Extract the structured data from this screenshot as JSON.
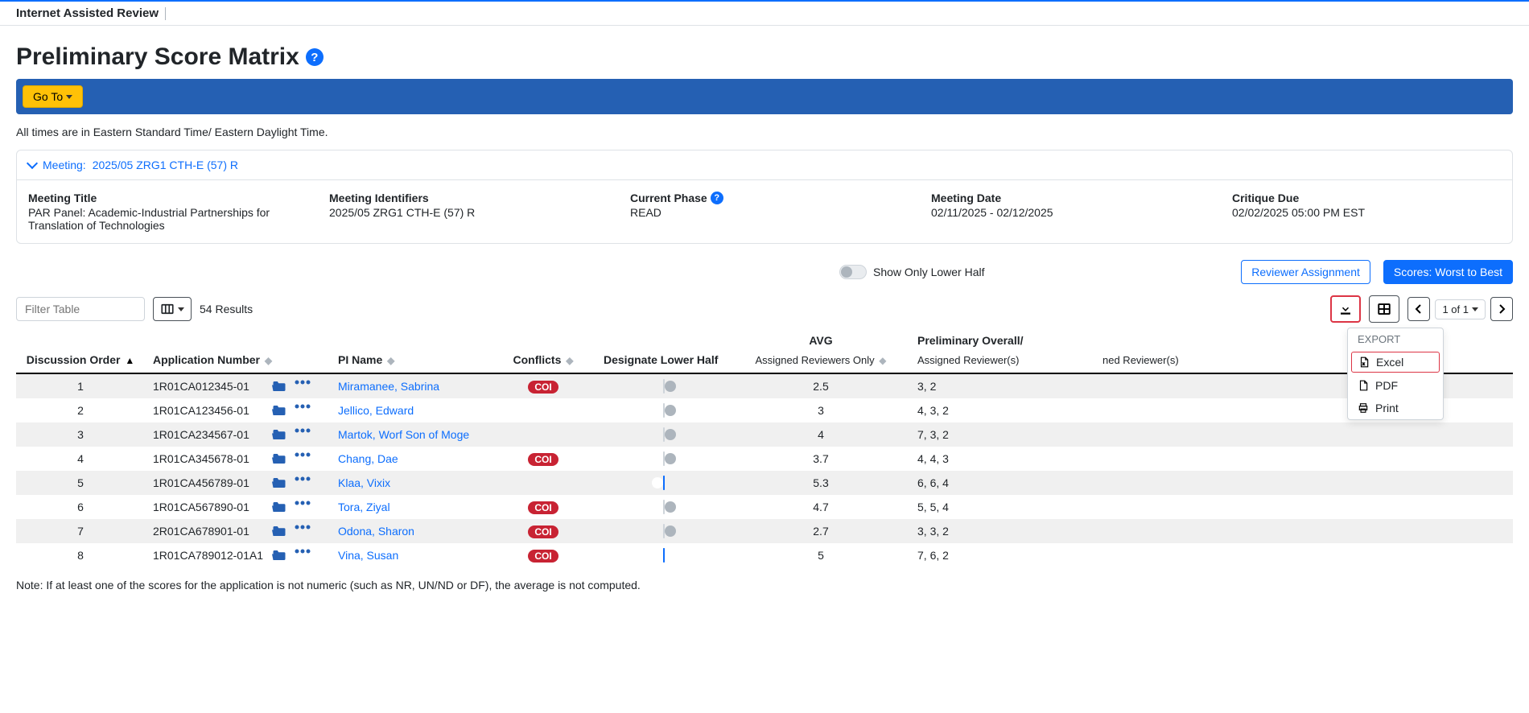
{
  "app_title": "Internet Assisted Review",
  "page_title": "Preliminary Score Matrix",
  "goto_label": "Go To",
  "timezone_note": "All times are in Eastern Standard Time/ Eastern Daylight Time.",
  "meeting_link_prefix": "Meeting:",
  "meeting_link_id": "2025/05 ZRG1 CTH-E (57) R",
  "details": {
    "title_label": "Meeting Title",
    "title_value": "PAR Panel: Academic-Industrial Partnerships for Translation of Technologies",
    "identifiers_label": "Meeting Identifiers",
    "identifiers_value": "2025/05 ZRG1 CTH-E (57) R",
    "phase_label": "Current Phase",
    "phase_value": "READ",
    "date_label": "Meeting Date",
    "date_value": "02/11/2025 - 02/12/2025",
    "critique_label": "Critique Due",
    "critique_value": "02/02/2025 05:00 PM EST"
  },
  "show_lower_half_label": "Show Only Lower Half",
  "reviewer_assignment_label": "Reviewer Assignment",
  "scores_order_label": "Scores: Worst to Best",
  "filter_placeholder": "Filter Table",
  "results_count": "54 Results",
  "pager_label": "1 of 1",
  "columns": {
    "order": "Discussion Order",
    "app": "Application Number",
    "pi": "PI Name",
    "conflicts": "Conflicts",
    "lower": "Designate Lower Half",
    "avg": "AVG",
    "avg_sub": "Assigned Reviewers Only",
    "prelim": "Preliminary Overall/",
    "prelim_sub": "Assigned Reviewer(s)",
    "prelim_sub2": "ned Reviewer(s)"
  },
  "export_menu": {
    "header": "EXPORT",
    "excel": "Excel",
    "pdf": "PDF",
    "print": "Print"
  },
  "coi_text": "COI",
  "rows": [
    {
      "order": "1",
      "app": "1R01CA012345-01",
      "pi": "Miramanee, Sabrina",
      "coi": true,
      "lower_on": false,
      "avg": "2.5",
      "scores": "3, 2"
    },
    {
      "order": "2",
      "app": "1R01CA123456-01",
      "pi": "Jellico, Edward",
      "coi": false,
      "lower_on": false,
      "avg": "3",
      "scores": "4, 3, 2"
    },
    {
      "order": "3",
      "app": "1R01CA234567-01",
      "pi": "Martok, Worf Son of Moge",
      "coi": false,
      "lower_on": false,
      "avg": "4",
      "scores": "7, 3, 2"
    },
    {
      "order": "4",
      "app": "1R01CA345678-01",
      "pi": "Chang, Dae",
      "coi": true,
      "lower_on": false,
      "avg": "3.7",
      "scores": "4, 4, 3"
    },
    {
      "order": "5",
      "app": "1R01CA456789-01",
      "pi": "Klaa, Vixix",
      "coi": false,
      "lower_on": true,
      "avg": "5.3",
      "scores": "6, 6, 4"
    },
    {
      "order": "6",
      "app": "1R01CA567890-01",
      "pi": "Tora, Ziyal",
      "coi": true,
      "lower_on": false,
      "avg": "4.7",
      "scores": "5, 5, 4"
    },
    {
      "order": "7",
      "app": "2R01CA678901-01",
      "pi": "Odona, Sharon",
      "coi": true,
      "lower_on": false,
      "avg": "2.7",
      "scores": "3, 3, 2"
    },
    {
      "order": "8",
      "app": "1R01CA789012-01A1",
      "pi": "Vina, Susan",
      "coi": true,
      "lower_on": true,
      "avg": "5",
      "scores": "7, 6, 2"
    }
  ],
  "footnote": "Note: If at least one of the scores for the application is not numeric (such as NR, UN/ND or DF), the average is not computed.",
  "colors": {
    "primary": "#0d6efd",
    "bar": "#2560b3",
    "warning": "#ffc107",
    "danger": "#c82333",
    "border_highlight": "#dc3545"
  }
}
